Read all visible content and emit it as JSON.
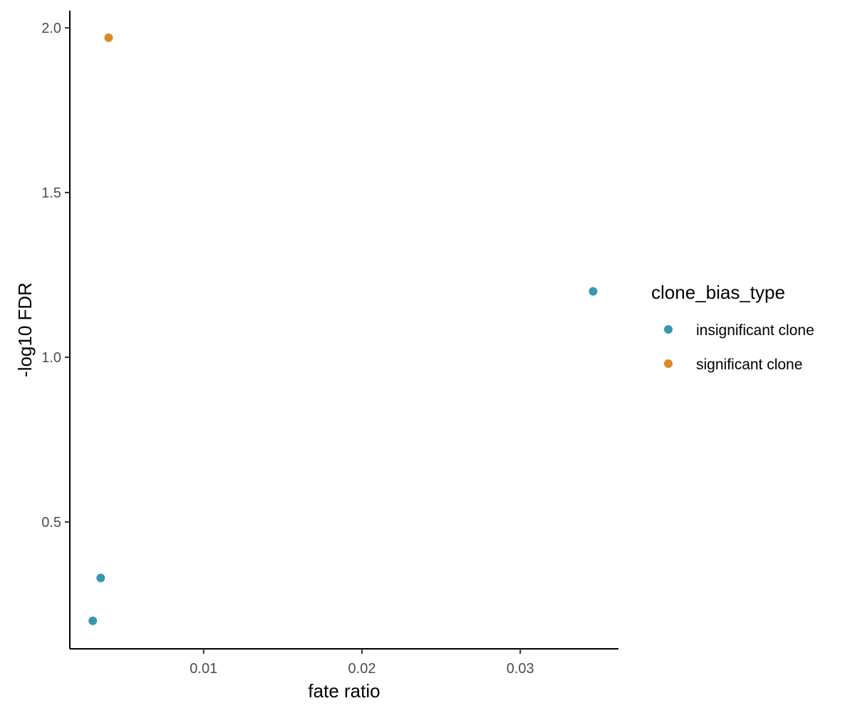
{
  "chart_data": {
    "type": "scatter",
    "title": "",
    "xlabel": "fate ratio",
    "ylabel": "-log10 FDR",
    "xlim": [
      0.00155,
      0.0362
    ],
    "ylim": [
      0.115,
      2.052
    ],
    "x_ticks": [
      0.01,
      0.02,
      0.03
    ],
    "x_tick_labels": [
      "0.01",
      "0.02",
      "0.03"
    ],
    "y_ticks": [
      0.5,
      1.0,
      1.5,
      2.0
    ],
    "y_tick_labels": [
      "0.5",
      "1.0",
      "1.5",
      "2.0"
    ],
    "grid": false,
    "legend": {
      "title": "clone_bias_type",
      "position": "right",
      "entries": [
        {
          "label": "insignificant clone",
          "color": "#3a96b0"
        },
        {
          "label": "significant clone",
          "color": "#d98a2b"
        }
      ]
    },
    "series": [
      {
        "name": "insignificant clone",
        "color": "#3a96b0",
        "points": [
          {
            "x": 0.0346,
            "y": 1.2
          },
          {
            "x": 0.0035,
            "y": 0.33
          },
          {
            "x": 0.003,
            "y": 0.2
          }
        ]
      },
      {
        "name": "significant clone",
        "color": "#d98a2b",
        "points": [
          {
            "x": 0.004,
            "y": 1.97
          }
        ]
      }
    ]
  }
}
